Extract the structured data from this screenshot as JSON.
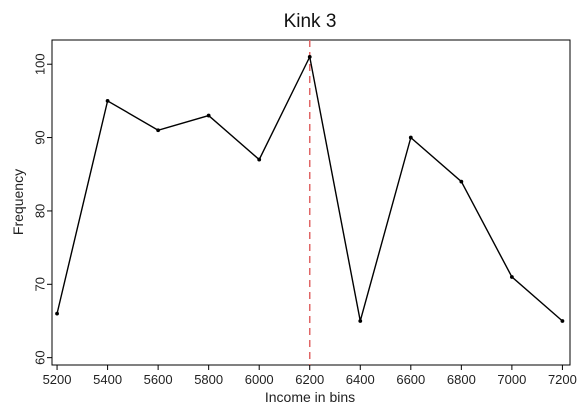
{
  "chart_data": {
    "type": "line",
    "title": "Kink 3",
    "xlabel": "Income in bins",
    "ylabel": "Frequency",
    "x": [
      5200,
      5400,
      5600,
      5800,
      6000,
      6200,
      6400,
      6600,
      6800,
      7000,
      7200
    ],
    "series": [
      {
        "values": [
          66,
          95,
          91,
          93,
          87,
          101,
          65,
          90,
          84,
          71,
          65
        ]
      }
    ],
    "xlim": [
      5200,
      7200
    ],
    "ylim": [
      60,
      102
    ],
    "xticks": [
      "5200",
      "5400",
      "5600",
      "5800",
      "6000",
      "6200",
      "6400",
      "6600",
      "6800",
      "7000",
      "7200"
    ],
    "yticks": [
      "60",
      "70",
      "80",
      "90",
      "100"
    ],
    "grid": false,
    "reference_line": {
      "x": 6200,
      "style": "dashed",
      "color": "#e06666"
    },
    "line_color": "#000000",
    "marker_color": "#000000"
  }
}
